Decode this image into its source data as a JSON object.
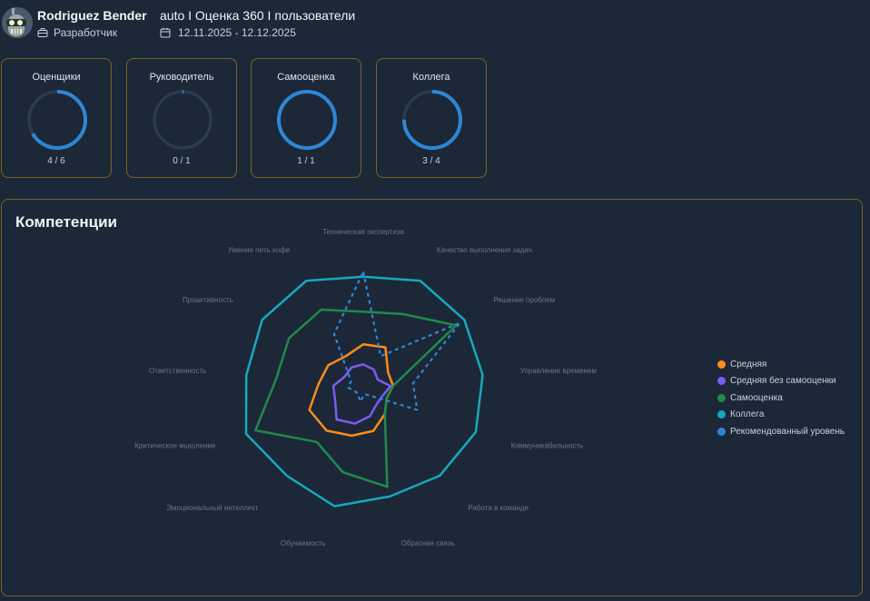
{
  "header": {
    "user_name": "Rodriguez Bender",
    "role": "Разработчик",
    "survey_title": "auto I Оценка 360 I пользователи",
    "period": "12.11.2025 - 12.12.2025"
  },
  "cards": [
    {
      "title": "Оценщики",
      "count": "4 / 6",
      "done": 4,
      "total": 6
    },
    {
      "title": "Руководитель",
      "count": "0 / 1",
      "done": 0,
      "total": 1
    },
    {
      "title": "Самооценка",
      "count": "1 / 1",
      "done": 1,
      "total": 1
    },
    {
      "title": "Коллега",
      "count": "3 / 4",
      "done": 3,
      "total": 4
    }
  ],
  "colors": {
    "accent": "#2f86d6",
    "ring_track": "#2a3b52",
    "border": "#7a6228"
  },
  "competencies": {
    "title": "Компетенции"
  },
  "chart_data": {
    "type": "radar",
    "title": "",
    "axes": [
      "Техническая экспертиза",
      "Качество выполнения задач",
      "Решение проблем",
      "Управление временем",
      "Коммуникабельность",
      "Работа в команде",
      "Обратная связь",
      "Обучаемость",
      "Эмоциональный интеллект",
      "Критическое мышление",
      "Ответственность",
      "Проактивность",
      "Умение пить кофе"
    ],
    "range": [
      0,
      5
    ],
    "legend_position": "right",
    "series": [
      {
        "name": "Средняя",
        "color": "#ff8c1a",
        "dash": false,
        "values": [
          1.8,
          1.9,
          1.2,
          1.2,
          1.0,
          1.3,
          1.7,
          1.9,
          2.2,
          2.3,
          1.8,
          1.7,
          1.5
        ]
      },
      {
        "name": "Средняя без самооценки",
        "color": "#7b5cf0",
        "dash": false,
        "values": [
          1.0,
          0.9,
          0.7,
          1.1,
          0.8,
          0.8,
          1.1,
          1.4,
          1.6,
          1.2,
          1.2,
          0.9,
          1.0
        ]
      },
      {
        "name": "Самооценка",
        "color": "#1f8a4c",
        "dash": false,
        "values": [
          3.1,
          3.4,
          4.5,
          1.2,
          1.0,
          1.3,
          4.0,
          3.4,
          2.8,
          4.6,
          3.5,
          3.6,
          3.6
        ]
      },
      {
        "name": "Коллега",
        "color": "#17a8c0",
        "dash": false,
        "values": [
          4.5,
          4.9,
          4.9,
          4.8,
          4.8,
          4.6,
          4.4,
          4.8,
          4.6,
          5.0,
          4.7,
          4.9,
          4.9
        ]
      },
      {
        "name": "Рекомендованный уровень",
        "color": "#2f86d6",
        "dash": true,
        "values": [
          4.7,
          1.5,
          4.7,
          2.0,
          2.3,
          0.3,
          0.2,
          0.5,
          0.3,
          0.3,
          0.6,
          0.6,
          2.5
        ]
      }
    ]
  }
}
